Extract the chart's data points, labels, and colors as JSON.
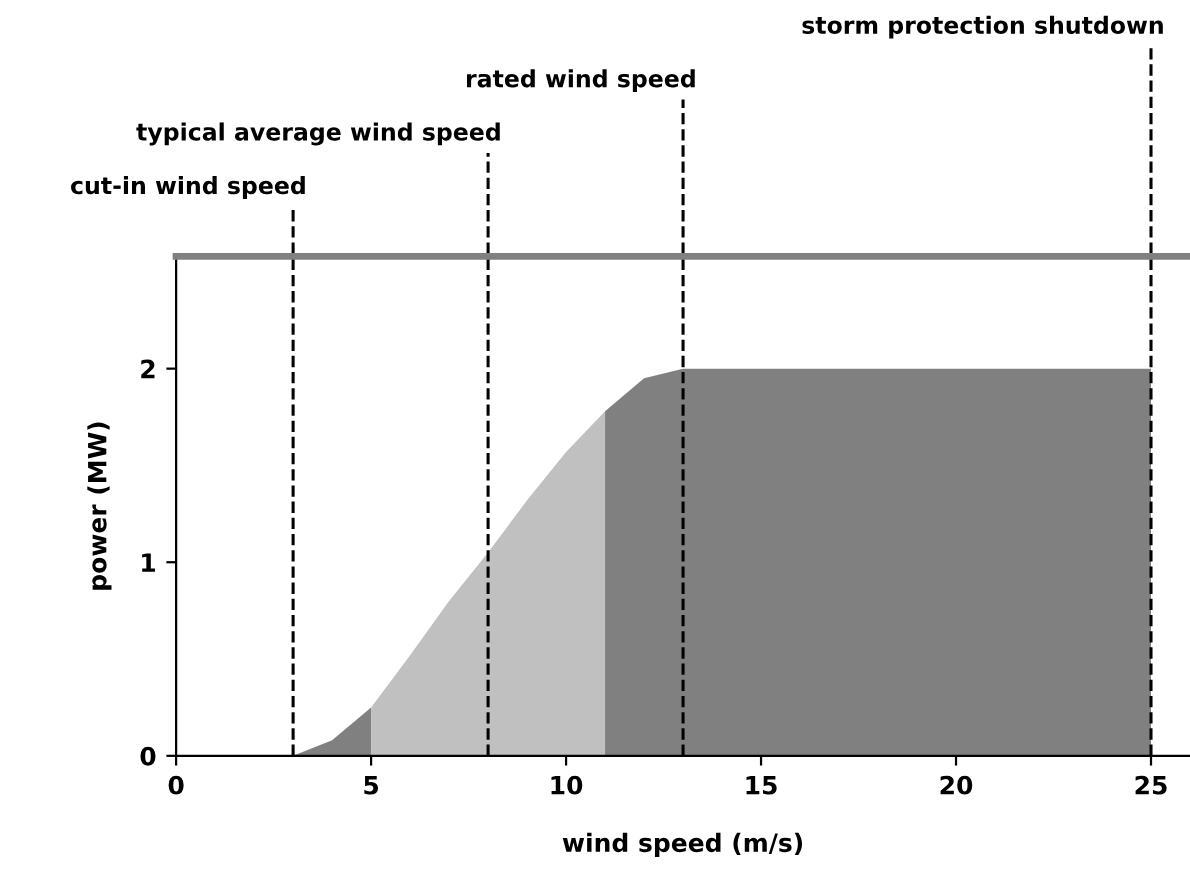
{
  "chart_data": {
    "type": "area",
    "xlabel": "wind speed (m/s)",
    "ylabel": "power (MW)",
    "xlim": [
      0,
      26
    ],
    "xticks": [
      0,
      5,
      10,
      15,
      20,
      25
    ],
    "ylim": [
      0,
      2.58
    ],
    "yticks": [
      0,
      1,
      2
    ],
    "grid": false,
    "legend": false,
    "series": [
      {
        "color": "#808080",
        "x": [
          0,
          3,
          4,
          5
        ],
        "values": [
          0,
          0,
          0.08,
          0.25
        ]
      },
      {
        "color": "#c0c0c0",
        "x": [
          5,
          6,
          7,
          8,
          9,
          10,
          11
        ],
        "values": [
          0.25,
          0.52,
          0.8,
          1.05,
          1.32,
          1.57,
          1.78
        ]
      },
      {
        "color": "#808080",
        "x": [
          11,
          12,
          13,
          25,
          25
        ],
        "values": [
          1.78,
          1.95,
          2,
          2,
          0
        ]
      }
    ],
    "ref_lines": [
      {
        "axis": "x",
        "value": 3,
        "label": "cut-in wind speed",
        "line_style": "dashed",
        "color": "#000000"
      },
      {
        "axis": "x",
        "value": 8,
        "label": "typical average wind speed",
        "line_style": "dashed",
        "color": "#000000"
      },
      {
        "axis": "x",
        "value": 13,
        "label": "rated wind speed",
        "line_style": "dashed",
        "color": "#000000"
      },
      {
        "axis": "x",
        "value": 25,
        "label": "storm protection shutdown",
        "line_style": "dashed",
        "color": "#000000"
      }
    ]
  }
}
